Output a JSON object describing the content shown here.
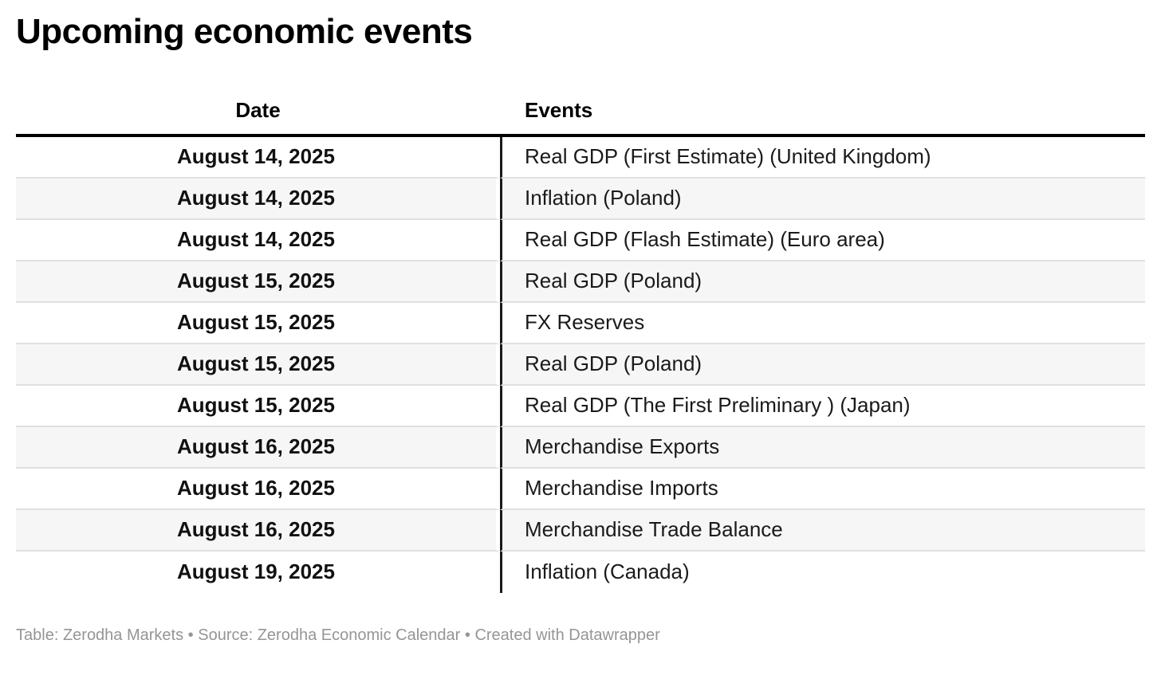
{
  "title": "Upcoming economic events",
  "chart_data": {
    "type": "table",
    "title": "Upcoming economic events",
    "columns": [
      "Date",
      "Events"
    ],
    "rows": [
      [
        "August 14, 2025",
        "Real GDP (First Estimate) (United Kingdom)"
      ],
      [
        "August 14, 2025",
        "Inflation (Poland)"
      ],
      [
        "August 14, 2025",
        "Real GDP (Flash Estimate) (Euro area)"
      ],
      [
        "August 15, 2025",
        "Real GDP (Poland)"
      ],
      [
        "August 15, 2025",
        "FX Reserves"
      ],
      [
        "August 15, 2025",
        "Real GDP (Poland)"
      ],
      [
        "August 15, 2025",
        "Real GDP (The First Preliminary ) (Japan)"
      ],
      [
        "August 16, 2025",
        "Merchandise Exports"
      ],
      [
        "August 16, 2025",
        "Merchandise Imports"
      ],
      [
        "August 16, 2025",
        "Merchandise Trade Balance"
      ],
      [
        "August 19, 2025",
        "Inflation (Canada)"
      ]
    ],
    "layout": {
      "date_column_align": "center",
      "date_column_bold": true,
      "events_column_align": "left",
      "zebra_striping": true,
      "header_rule": "thick-black",
      "column_divider": "vertical-black-line"
    }
  },
  "footer": {
    "table_label": "Table: ",
    "table_credit": "Zerodha Markets",
    "separator1": " • ",
    "source_label": "Source: ",
    "source_credit": "Zerodha Economic Calendar",
    "separator2": " • ",
    "created_with": "Created with Datawrapper"
  },
  "colors": {
    "title_text": "#000000",
    "header_text": "#000000",
    "header_rule": "#000000",
    "column_divider": "#1a1a1a",
    "row_separator": "#e0e0e0",
    "zebra_row_bg": "#f6f6f6",
    "row_bg": "#ffffff",
    "date_text": "#111111",
    "event_text": "#1a1a1a",
    "footer_text": "#959595"
  }
}
